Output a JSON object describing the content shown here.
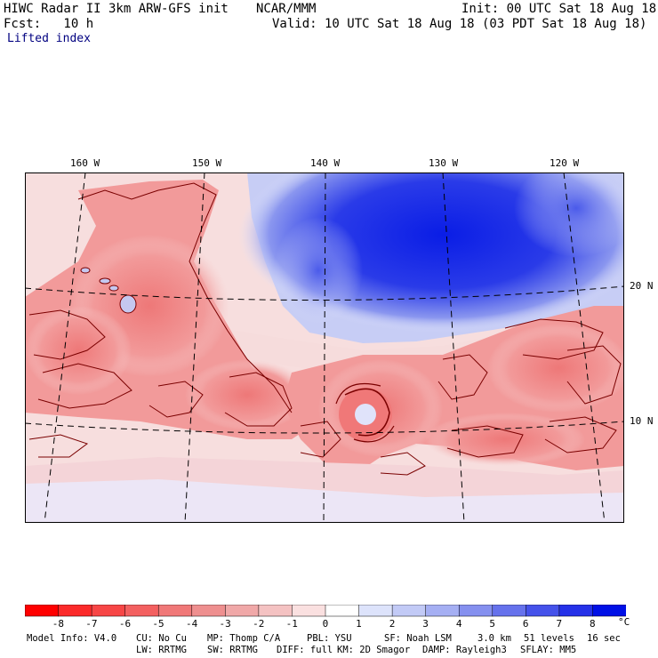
{
  "header": {
    "left_line1": "HIWC Radar II 3km ARW-GFS init",
    "center_line1": "NCAR/MMM",
    "right_line1": "Init: 00 UTC Sat 18 Aug 18",
    "left_line2": "Fcst:   10 h",
    "right_line2": "Valid: 10 UTC Sat 18 Aug 18 (03 PDT Sat 18 Aug 18)",
    "field_name": "Lifted index"
  },
  "map": {
    "longitude_labels": [
      "160 W",
      "150 W",
      "140 W",
      "130 W",
      "120 W"
    ],
    "latitude_labels": [
      "20 N",
      "10 N"
    ]
  },
  "colorbar": {
    "tick_labels": [
      "-8",
      "-7",
      "-6",
      "-5",
      "-4",
      "-3",
      "-2",
      "-1",
      "0",
      "1",
      "2",
      "3",
      "4",
      "5",
      "6",
      "7",
      "8"
    ],
    "unit": "°C",
    "colors": [
      "#ff0000",
      "#fb2a2a",
      "#f74646",
      "#f36060",
      "#f07878",
      "#ee8f8f",
      "#f0a8a8",
      "#f4c2c2",
      "#fae0e0",
      "#ffffff",
      "#dde3fb",
      "#c2caf6",
      "#a5aff3",
      "#8590ef",
      "#6672ec",
      "#4552ea",
      "#2531e8",
      "#0010e6"
    ]
  },
  "footer": {
    "model_info": "Model Info: V4.0",
    "cu": "CU: No Cu",
    "mp": "MP: Thomp C/A",
    "pbl": "PBL: YSU",
    "sf": "SF: Noah LSM",
    "res": "3.0 km",
    "levels": "51 levels",
    "dt": "16 sec",
    "lw": "LW: RRTMG",
    "sw": "SW: RRTMG",
    "diff": "DIFF: full",
    "km": "KM: 2D Smagor",
    "damp": "DAMP: Rayleigh3",
    "sflay": "SFLAY: MM5"
  }
}
